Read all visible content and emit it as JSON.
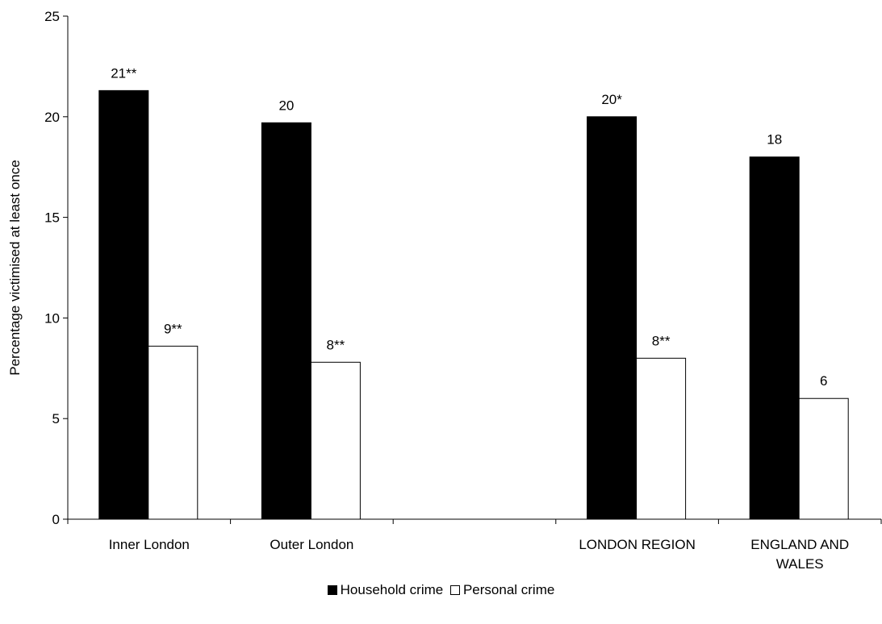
{
  "chartData": {
    "type": "bar",
    "ylabel": "Percentage victimised at least once",
    "ylim": [
      0,
      25
    ],
    "yticks": [
      0,
      5,
      10,
      15,
      20,
      25
    ],
    "grid": false,
    "legendPlacement": "bottom-center",
    "categories": [
      {
        "lines": [
          "Inner London"
        ]
      },
      {
        "lines": [
          "Outer London"
        ]
      },
      {
        "lines": []
      },
      {
        "lines": [
          "LONDON REGION"
        ]
      },
      {
        "lines": [
          "ENGLAND AND",
          "WALES"
        ]
      }
    ],
    "series": [
      {
        "name": "Household crime",
        "color": "#000000",
        "values": [
          21.3,
          19.7,
          null,
          20.0,
          18.0
        ],
        "labels": [
          "21**",
          "20",
          "",
          "20*",
          "18"
        ]
      },
      {
        "name": "Personal crime",
        "color": "#ffffff",
        "values": [
          8.6,
          7.8,
          null,
          8.0,
          6.0
        ],
        "labels": [
          "9**",
          "8**",
          "",
          "8**",
          "6"
        ]
      }
    ]
  }
}
